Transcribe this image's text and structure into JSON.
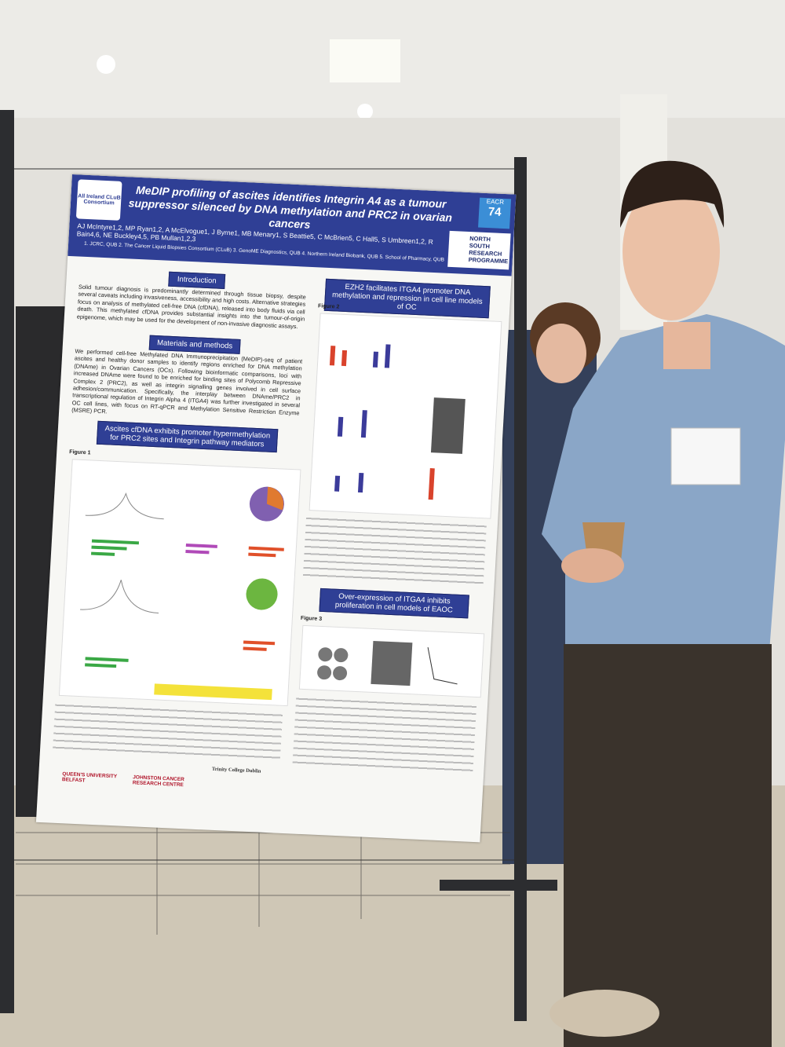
{
  "poster": {
    "title": "MeDIP profiling of ascites identifies Integrin A4 as a tumour suppressor silenced by DNA methylation and PRC2 in ovarian cancers",
    "authors": "AJ McIntyre1,2, MP Ryan1,2, A McElvogue1, J Byrne1, MB Menary1, S Beattie5, C McBrien5, C Hall5, S Umbreen1,2, R Bain4,6, NE Buckley4,5, PB Mullan1,2,3",
    "affiliations": "1. JCRC, QUB   2. The Cancer Liquid Biopsies Consortium (CLuB)   3. GenoME Diagnostics, QUB   4. Northern Ireland Biobank, QUB   5. School of Pharmacy, QUB",
    "logo_left": "All Ireland CLuB Consortium",
    "logo_right": "NORTH SOUTH RESEARCH PROGRAMME",
    "badge": "EACR",
    "badge_number": "74",
    "introduction": {
      "heading": "Introduction",
      "text": "Solid tumour diagnosis is predominantly determined through tissue biopsy, despite several caveats including invasiveness, accessibility and high costs. Alternative strategies focus on analysis of methylated cell-free DNA (cfDNA), released into body fluids via cell death. This methylated cfDNA provides substantial insights into the tumour-of-origin epigenome, which may be used for the development of non-invasive diagnostic assays."
    },
    "methods": {
      "heading": "Materials and methods",
      "text": "We performed cell-free Methylated DNA Immunoprecipitation (MeDIP)-seq of patient ascites and healthy donor samples to identify regions enriched for DNA methylation (DNAme) in Ovarian Cancers (OCs). Following bioinformatic comparisons, loci with increased DNAme were found to be enriched for binding sites of Polycomb Repressive Complex 2 (PRC2), as well as integrin signalling genes involved in cell surface adhesion/communication. Specifically, the interplay between DNAme/PRC2 in transcriptional regulation of Integrin Alpha 4 (ITGA4) was further investigated in several OC cell lines, with focus on RT-qPCR and Methylation Sensitive Restriction Enzyme (MSRE) PCR."
    },
    "section_1": "Ascites cfDNA exhibits promoter hypermethylation for PRC2 sites and Integrin pathway mediators",
    "section_2": "EZH2 facilitates ITGA4 promoter DNA methylation and repression in cell line models of OC",
    "section_3": "Over-expression of ITGA4 inhibits proliferation in cell models of EAOC",
    "figure_1": "Figure 1",
    "figure_2": "Figure 2",
    "figure_3": "Figure 3",
    "footer_logos": [
      "QUEEN'S UNIVERSITY BELFAST",
      "JOHNSTON CANCER RESEARCH CENTRE",
      "Trinity College Dublin"
    ]
  }
}
